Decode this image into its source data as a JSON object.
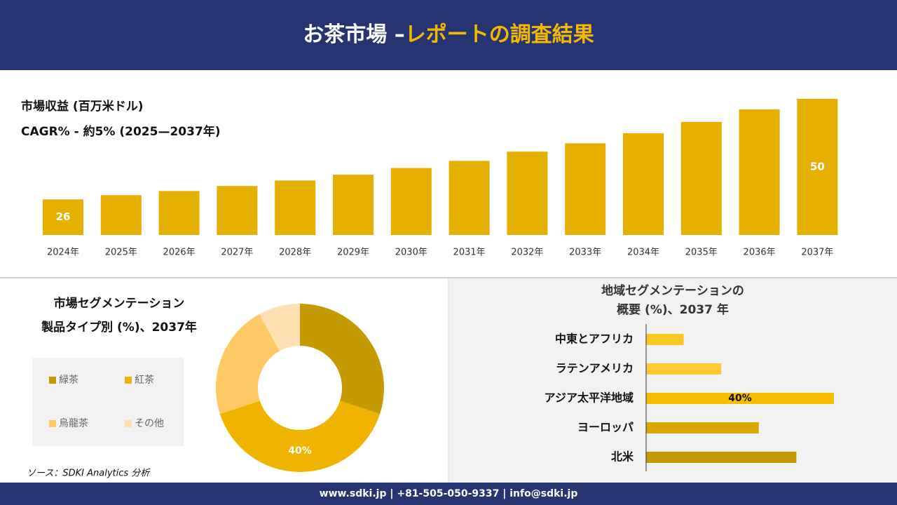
{
  "header": {
    "title": "お茶市場 –",
    "highlight": "レポートの調査結果"
  },
  "chart_data": [
    {
      "type": "bar",
      "title": "市場収益 (百万米ドル)",
      "subtitle": "CAGR% - 約5% (2025—2037年)",
      "categories": [
        "2024年",
        "2025年",
        "2026年",
        "2027年",
        "2028年",
        "2029年",
        "2030年",
        "2031年",
        "2032年",
        "2033年",
        "2034年",
        "2035年",
        "2036年",
        "2037年"
      ],
      "values": [
        26,
        27,
        28,
        29.2,
        30.5,
        31.9,
        33.5,
        35.2,
        37.4,
        39.4,
        41.8,
        44.5,
        47.5,
        50
      ],
      "value_labels": [
        "26",
        null,
        null,
        null,
        null,
        null,
        null,
        null,
        null,
        null,
        null,
        null,
        null,
        "50"
      ],
      "color": "#e6b000",
      "ylim": [
        17.5,
        50
      ]
    },
    {
      "type": "donut",
      "title": "市場セグメンテーション",
      "subtitle": "製品タイプ別 (%)、2037年",
      "categories": [
        "緑茶",
        "紅茶",
        "烏龍茶",
        "その他"
      ],
      "values": [
        30,
        40,
        22,
        8
      ],
      "value_labels": [
        null,
        "40%",
        null,
        null
      ],
      "colors": [
        "#c49a00",
        "#f0b400",
        "#ffc966",
        "#ffe0b2"
      ]
    },
    {
      "type": "barh",
      "title": "地域セグメンテーションの",
      "subtitle": "概要 (%)、2037 年",
      "categories": [
        "中東とアフリカ",
        "ラテンアメリカ",
        "アジア太平洋地域",
        "ヨーロッパ",
        "北米"
      ],
      "values": [
        8,
        16,
        40,
        24,
        32
      ],
      "value_labels": [
        null,
        null,
        "40%",
        null,
        null
      ],
      "colors": [
        "#f9c623",
        "#ffc933",
        "#f7be00",
        "#d9a800",
        "#c49a00"
      ],
      "xlim": [
        0,
        40
      ]
    }
  ],
  "source": "ソース：SDKI Analytics 分析",
  "footer": "www.sdki.jp | +81-505-050-9337 | info@sdki.jp"
}
